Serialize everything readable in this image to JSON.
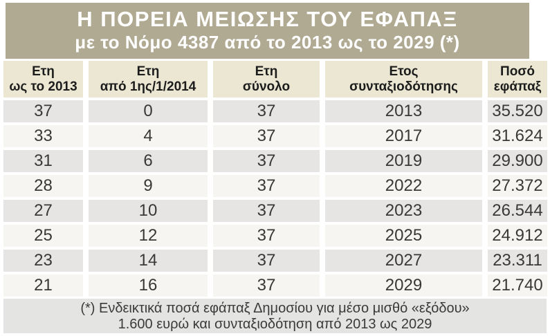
{
  "title": {
    "line1": "Η ΠΟΡΕΙΑ ΜΕΙΩΣΗΣ ΤΟΥ ΕΦΑΠΑΞ",
    "line2": "με το Νόμο 4387 από το 2013 ως το 2029 (*)"
  },
  "table": {
    "headers": [
      {
        "line1": "Ετη",
        "line2": "ως το 2013"
      },
      {
        "line1": "Ετη",
        "line2": "από 1ης/1/2014"
      },
      {
        "line1": "Ετη",
        "line2": "σύνολο"
      },
      {
        "line1": "Ετος",
        "line2": "συνταξιοδότησης"
      },
      {
        "line1": "Ποσό",
        "line2": "εφάπαξ"
      }
    ],
    "rows": [
      [
        "37",
        "0",
        "37",
        "2013",
        "35.520"
      ],
      [
        "33",
        "4",
        "37",
        "2017",
        "31.624"
      ],
      [
        "31",
        "6",
        "37",
        "2019",
        "29.900"
      ],
      [
        "28",
        "9",
        "37",
        "2022",
        "27.372"
      ],
      [
        "27",
        "10",
        "37",
        "2023",
        "26.544"
      ],
      [
        "25",
        "12",
        "37",
        "2025",
        "24.912"
      ],
      [
        "23",
        "14",
        "37",
        "2027",
        "23.311"
      ],
      [
        "21",
        "16",
        "37",
        "2029",
        "21.740"
      ]
    ]
  },
  "footnote": {
    "line1": "(*) Ενδεικτικά ποσά εφάπαξ Δημοσίου για μέσο μισθό «εξόδου»",
    "line2": "1.600 ευρώ και συνταξιοδότηση από 2013 ως 2029"
  },
  "colors": {
    "banner_bg": "#b1aa93",
    "header_bg": "#ebe7d3",
    "row_odd_bg": "#e6e5e3",
    "row_even_bg": "#f6f5f1",
    "footnote_bg": "#e4e4e2",
    "title_text": "#ffffff",
    "cell_text": "#383836"
  },
  "chart_data": {
    "type": "table",
    "title": "Η ΠΟΡΕΙΑ ΜΕΙΩΣΗΣ ΤΟΥ ΕΦΑΠΑΞ με το Νόμο 4387 από το 2013 ως το 2029 (*)",
    "columns": [
      "Ετη ως το 2013",
      "Ετη από 1ης/1/2014",
      "Ετη σύνολο",
      "Ετος συνταξιοδότησης",
      "Ποσό εφάπαξ"
    ],
    "rows": [
      [
        37,
        0,
        37,
        2013,
        "35.520"
      ],
      [
        33,
        4,
        37,
        2017,
        "31.624"
      ],
      [
        31,
        6,
        37,
        2019,
        "29.900"
      ],
      [
        28,
        9,
        37,
        2022,
        "27.372"
      ],
      [
        27,
        10,
        37,
        2023,
        "26.544"
      ],
      [
        25,
        12,
        37,
        2025,
        "24.912"
      ],
      [
        23,
        14,
        37,
        2027,
        "23.311"
      ],
      [
        21,
        16,
        37,
        2029,
        "21.740"
      ]
    ],
    "lump_sum_amounts_eur": [
      35520,
      31624,
      29900,
      27372,
      26544,
      24912,
      23311,
      21740
    ],
    "footnote": "(*) Ενδεικτικά ποσά εφάπαξ Δημοσίου για μέσο μισθό «εξόδου» 1.600 ευρώ και συνταξιοδότηση από 2013 ως 2029"
  }
}
